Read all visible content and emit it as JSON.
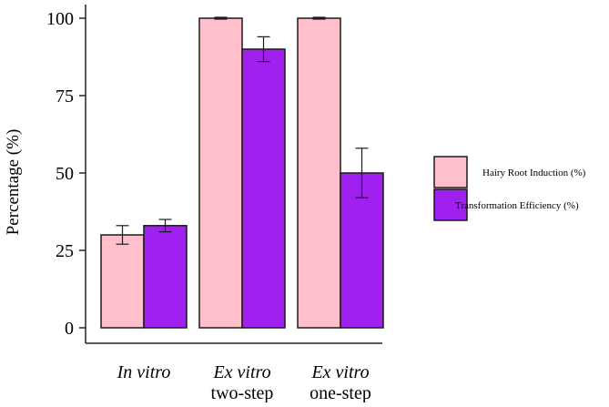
{
  "chart_data": {
    "type": "bar",
    "ylabel": "Percentage (%)",
    "ylim": [
      0,
      100
    ],
    "yticks": [
      0,
      25,
      50,
      75,
      100
    ],
    "grid": false,
    "legend_position": "right",
    "categories": [
      {
        "line1": "In vitro",
        "line2": ""
      },
      {
        "line1": "Ex vitro",
        "line2": "two-step"
      },
      {
        "line1": "Ex vitro",
        "line2": "one-step"
      }
    ],
    "series": [
      {
        "name": "Hairy Root Induction (%)",
        "color": "#ffc0cb",
        "values": [
          30,
          100,
          100
        ],
        "errors": [
          3,
          0.3,
          0.3
        ]
      },
      {
        "name": "Transformation Efficiency (%)",
        "color": "#a020f0",
        "values": [
          33,
          90,
          50
        ],
        "errors": [
          2,
          4,
          8
        ]
      }
    ]
  }
}
